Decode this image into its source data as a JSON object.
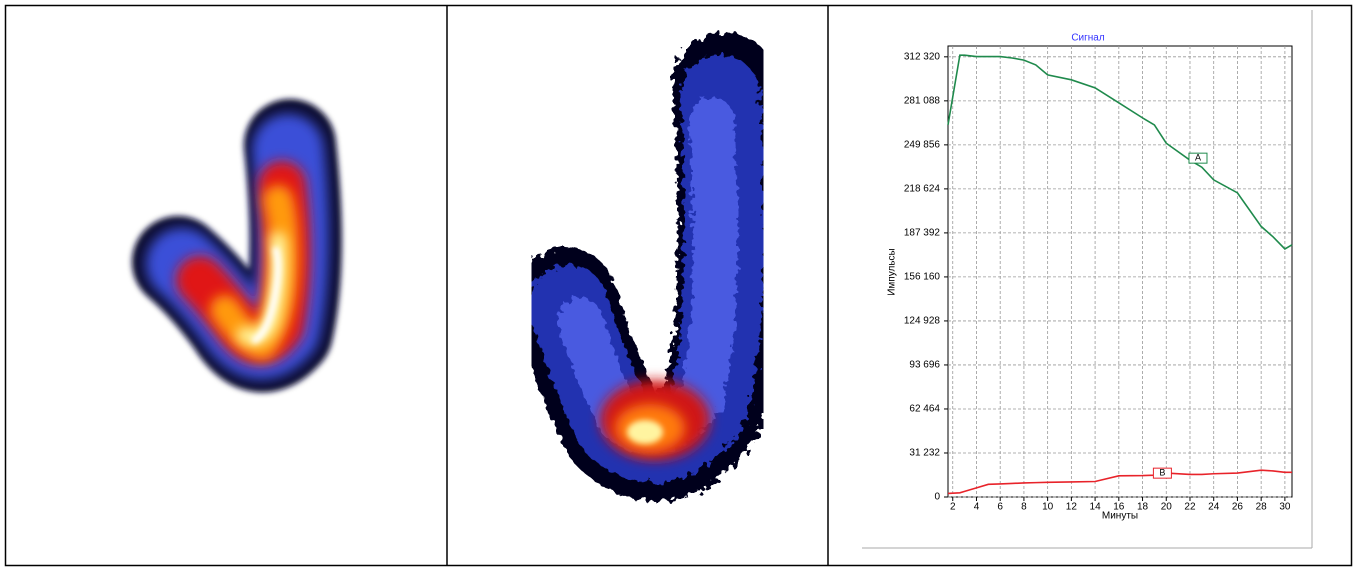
{
  "chart_data": {
    "type": "line",
    "title": "Сигнал",
    "xlabel": "Минуты",
    "ylabel": "Импульсы",
    "x": [
      1.6,
      2.6,
      3,
      4,
      5,
      6,
      7,
      8,
      9,
      10,
      12,
      14,
      16,
      18,
      19,
      20,
      22,
      23,
      24,
      26,
      28,
      29,
      30,
      30.6
    ],
    "series": [
      {
        "name": "A",
        "color": "#1f8a4c",
        "values": [
          264000,
          313500,
          313500,
          312500,
          312500,
          312500,
          311500,
          310000,
          306600,
          299500,
          296000,
          290300,
          279700,
          269000,
          264000,
          251000,
          239000,
          234000,
          225000,
          215800,
          192000,
          184600,
          176000,
          178900
        ]
      },
      {
        "name": "B",
        "color": "#e8232a",
        "values": [
          2500,
          3000,
          4000,
          6500,
          9000,
          9300,
          9600,
          10000,
          10200,
          10400,
          10700,
          11000,
          15000,
          15200,
          15500,
          17000,
          16000,
          16000,
          16500,
          17000,
          19000,
          18500,
          17500,
          17500
        ]
      }
    ],
    "xlim": [
      1.6,
      30.6
    ],
    "xticks": [
      2,
      4,
      6,
      8,
      10,
      12,
      14,
      16,
      18,
      20,
      22,
      24,
      26,
      28,
      30
    ],
    "ylim": [
      0,
      320000
    ],
    "yticks": [
      0,
      {
        "value": 31232,
        "label": "31 232"
      },
      {
        "value": 62464,
        "label": "62 464"
      },
      {
        "value": 93696,
        "label": "93 696"
      },
      {
        "value": 124928,
        "label": "124 928"
      },
      {
        "value": 156160,
        "label": "156 160"
      },
      {
        "value": 187392,
        "label": "187 392"
      },
      {
        "value": 218624,
        "label": "218 624"
      },
      {
        "value": 249856,
        "label": "249 856"
      },
      {
        "value": 281088,
        "label": "281 088"
      },
      {
        "value": 312320,
        "label": "312 320"
      }
    ],
    "grid": true
  }
}
